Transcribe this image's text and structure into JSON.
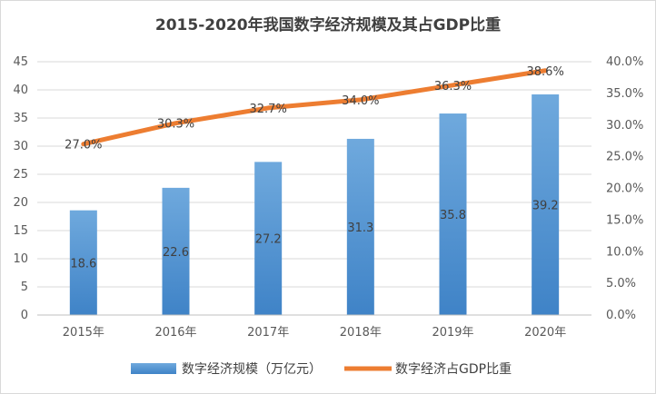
{
  "chart_data": {
    "type": "bar",
    "title": "2015-2020年我国数字经济规模及其占GDP比重",
    "categories": [
      "2015年",
      "2016年",
      "2017年",
      "2018年",
      "2019年",
      "2020年"
    ],
    "series": [
      {
        "name": "数字经济规模（万亿元）",
        "type": "bar",
        "axis": "left",
        "values": [
          18.6,
          22.6,
          27.2,
          31.3,
          35.8,
          39.2
        ],
        "labels": [
          "18.6",
          "22.6",
          "27.2",
          "31.3",
          "35.8",
          "39.2"
        ],
        "color": "#5b9bd5"
      },
      {
        "name": "数字经济占GDP比重",
        "type": "line",
        "axis": "right",
        "values": [
          27.0,
          30.3,
          32.7,
          34.0,
          36.3,
          38.6
        ],
        "labels": [
          "27.0%",
          "30.3%",
          "32.7%",
          "34.0%",
          "36.3%",
          "38.6%"
        ],
        "color": "#ed7d31"
      }
    ],
    "y_left": {
      "ylim": [
        0,
        45
      ],
      "ticks": [
        "0",
        "5",
        "10",
        "15",
        "20",
        "25",
        "30",
        "35",
        "40",
        "45"
      ]
    },
    "y_right": {
      "ylim": [
        0,
        40
      ],
      "ticks": [
        "0.0%",
        "5.0%",
        "10.0%",
        "15.0%",
        "20.0%",
        "25.0%",
        "30.0%",
        "35.0%",
        "40.0%"
      ]
    },
    "grid": true,
    "legend": "bottom"
  }
}
